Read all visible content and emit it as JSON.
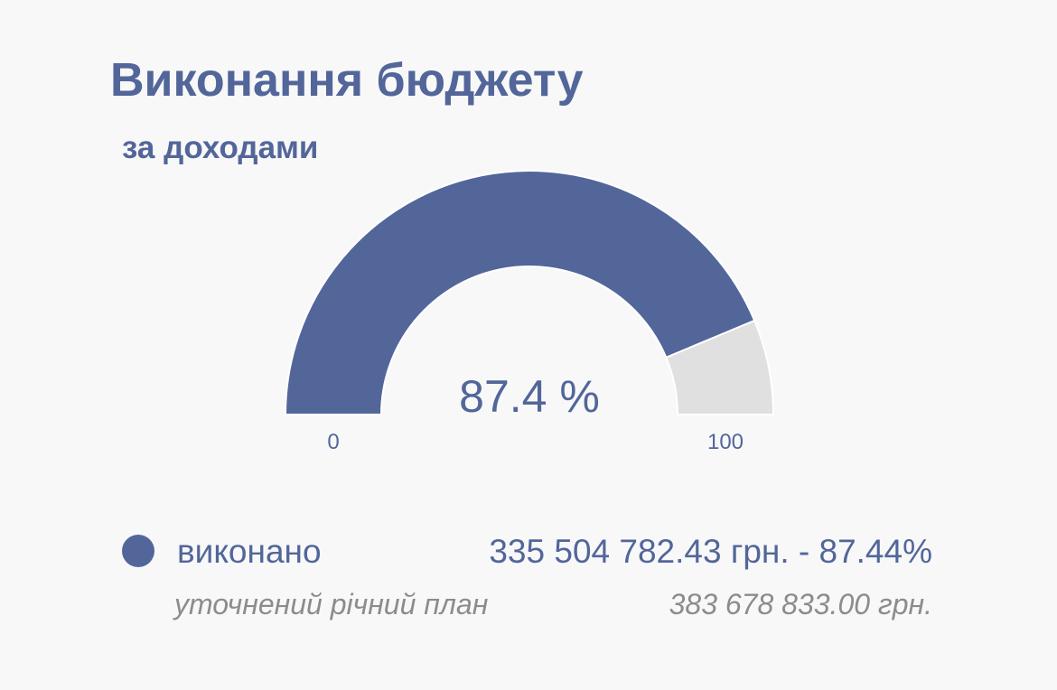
{
  "chart_data": {
    "type": "gauge",
    "title": "Виконання бюджету",
    "subtitle": "за доходами",
    "values": [
      87.4
    ],
    "value_labels": [
      "87.4 %"
    ],
    "color": "#52669a",
    "track_color": "#e0e0e0",
    "ylim": [
      0,
      100
    ],
    "yticks": [
      0,
      100
    ],
    "legend": {
      "name": "виконано",
      "amount": "335 504 782.43 грн. - 87.44%"
    },
    "plan": {
      "label": "уточнений річний план",
      "amount": "383 678 833.00 грн."
    }
  }
}
